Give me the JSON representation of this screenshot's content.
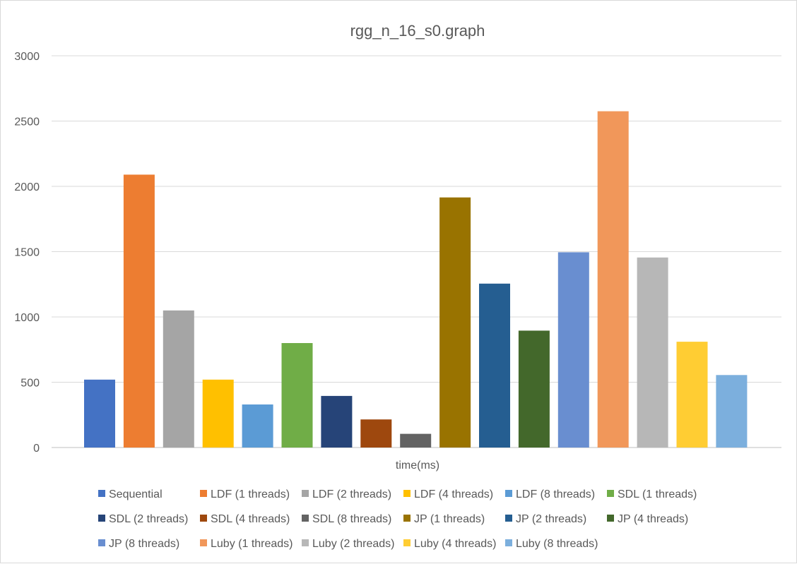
{
  "chart_data": {
    "type": "bar",
    "title": "rgg_n_16_s0.graph",
    "xlabel": "time(ms)",
    "ylabel": "",
    "ylim": [
      0,
      3000
    ],
    "yticks": [
      0,
      500,
      1000,
      1500,
      2000,
      2500,
      3000
    ],
    "grid": true,
    "legend_position": "bottom",
    "categories": [
      "time(ms)"
    ],
    "series": [
      {
        "name": "Sequential",
        "values": [
          520
        ],
        "color": "#4472C4"
      },
      {
        "name": "LDF (1 threads)",
        "values": [
          2090
        ],
        "color": "#ED7D31"
      },
      {
        "name": "LDF (2 threads)",
        "values": [
          1050
        ],
        "color": "#A5A5A5"
      },
      {
        "name": "LDF (4 threads)",
        "values": [
          520
        ],
        "color": "#FFC000"
      },
      {
        "name": "LDF (8 threads)",
        "values": [
          330
        ],
        "color": "#5B9BD5"
      },
      {
        "name": "SDL (1 threads)",
        "values": [
          800
        ],
        "color": "#70AD47"
      },
      {
        "name": "SDL (2 threads)",
        "values": [
          395
        ],
        "color": "#264478"
      },
      {
        "name": "SDL (4 threads)",
        "values": [
          215
        ],
        "color": "#9E480E"
      },
      {
        "name": "SDL (8 threads)",
        "values": [
          105
        ],
        "color": "#636363"
      },
      {
        "name": "JP (1 threads)",
        "values": [
          1915
        ],
        "color": "#997300"
      },
      {
        "name": "JP (2 threads)",
        "values": [
          1255
        ],
        "color": "#255E91"
      },
      {
        "name": "JP (4 threads)",
        "values": [
          895
        ],
        "color": "#43682B"
      },
      {
        "name": "JP (8 threads)",
        "values": [
          1495
        ],
        "color": "#698ED0"
      },
      {
        "name": "Luby (1 threads)",
        "values": [
          2575
        ],
        "color": "#F1975A"
      },
      {
        "name": "Luby (2 threads)",
        "values": [
          1455
        ],
        "color": "#B7B7B7"
      },
      {
        "name": "Luby (4 threads)",
        "values": [
          810
        ],
        "color": "#FFCD33"
      },
      {
        "name": "Luby (8 threads)",
        "values": [
          555
        ],
        "color": "#7CAFDD"
      }
    ]
  }
}
